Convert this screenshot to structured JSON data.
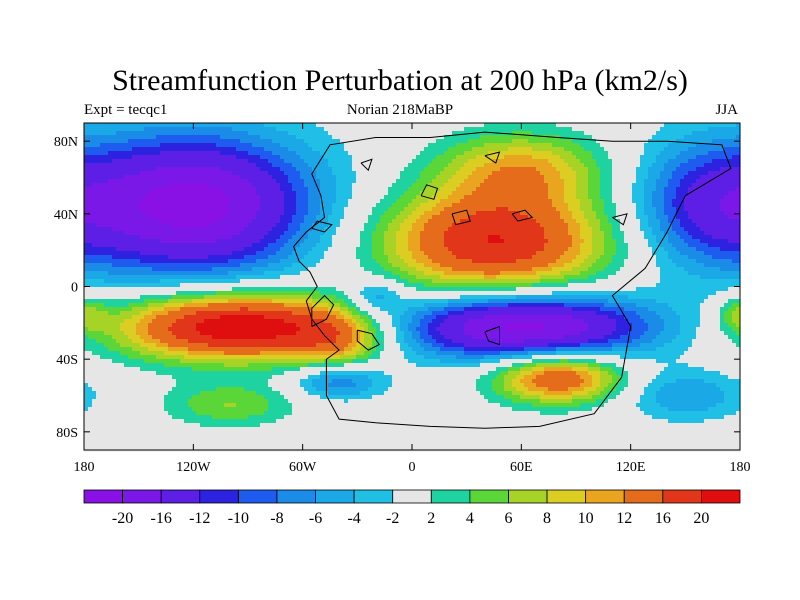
{
  "title": "Streamfunction Perturbation at 200 hPa (km2/s)",
  "subtitle_left": "Expt = tecqc1",
  "subtitle_center": "Norian 218MaBP",
  "subtitle_right": "JJA",
  "lat_ticks": [
    {
      "value": 80,
      "label": "80N"
    },
    {
      "value": 40,
      "label": "40N"
    },
    {
      "value": 0,
      "label": "0"
    },
    {
      "value": -40,
      "label": "40S"
    },
    {
      "value": -80,
      "label": "80S"
    }
  ],
  "lon_ticks": [
    {
      "value": -180,
      "label": "180"
    },
    {
      "value": -120,
      "label": "120W"
    },
    {
      "value": -60,
      "label": "60W"
    },
    {
      "value": 0,
      "label": "0"
    },
    {
      "value": 60,
      "label": "60E"
    },
    {
      "value": 120,
      "label": "120E"
    },
    {
      "value": 180,
      "label": "180"
    }
  ],
  "colorbar": {
    "colors": [
      "#8a11e6",
      "#7a18e8",
      "#5d1ee6",
      "#2c22e0",
      "#1d5cef",
      "#1a8ce8",
      "#1aa8e6",
      "#20c0e6",
      "#e6e6e6",
      "#1fd3a0",
      "#5ad639",
      "#a7d327",
      "#dccd22",
      "#e9a420",
      "#e46c1a",
      "#e2361b",
      "#e00f0f"
    ],
    "labels": [
      "-20",
      "-16",
      "-12",
      "-10",
      "-8",
      "-6",
      "-4",
      "-2",
      "2",
      "4",
      "6",
      "8",
      "10",
      "12",
      "16",
      "20"
    ]
  },
  "field_blobs": [
    {
      "lon": -120,
      "lat": 45,
      "rlon": 65,
      "rlat": 38,
      "amp": -22
    },
    {
      "lon": 160,
      "lat": 45,
      "rlon": 40,
      "rlat": 35,
      "amp": -10
    },
    {
      "lon": -95,
      "lat": -22,
      "rlon": 65,
      "rlat": 18,
      "amp": 24
    },
    {
      "lon": -40,
      "lat": -30,
      "rlon": 25,
      "rlat": 15,
      "amp": 8
    },
    {
      "lon": 60,
      "lat": -22,
      "rlon": 70,
      "rlat": 18,
      "amp": -22
    },
    {
      "lon": 45,
      "lat": 25,
      "rlon": 60,
      "rlat": 28,
      "amp": 20
    },
    {
      "lon": 60,
      "lat": 65,
      "rlon": 45,
      "rlat": 20,
      "amp": 10
    },
    {
      "lon": 80,
      "lat": -50,
      "rlon": 35,
      "rlat": 14,
      "amp": 16
    },
    {
      "lon": -100,
      "lat": -65,
      "rlon": 35,
      "rlat": 12,
      "amp": 6
    },
    {
      "lon": -40,
      "lat": -52,
      "rlon": 25,
      "rlat": 10,
      "amp": -8
    },
    {
      "lon": 150,
      "lat": -60,
      "rlon": 35,
      "rlat": 14,
      "amp": -6
    },
    {
      "lon": -20,
      "lat": -5,
      "rlon": 15,
      "rlat": 10,
      "amp": -6
    },
    {
      "lon": 180,
      "lat": -15,
      "rlon": 12,
      "rlat": 10,
      "amp": 6
    }
  ],
  "coastline": [
    [
      [
        -20,
        -75
      ],
      [
        -40,
        -73
      ],
      [
        -47,
        -60
      ],
      [
        -47,
        -40
      ],
      [
        -40,
        -35
      ],
      [
        -48,
        -27
      ],
      [
        -55,
        -18
      ],
      [
        -58,
        -8
      ],
      [
        -52,
        0
      ],
      [
        -56,
        8
      ],
      [
        -62,
        14
      ],
      [
        -65,
        22
      ],
      [
        -58,
        30
      ],
      [
        -48,
        38
      ],
      [
        -50,
        50
      ],
      [
        -55,
        62
      ],
      [
        -45,
        78
      ],
      [
        -20,
        82
      ],
      [
        10,
        82
      ],
      [
        40,
        85
      ],
      [
        80,
        82
      ],
      [
        110,
        80
      ],
      [
        140,
        80
      ],
      [
        170,
        78
      ],
      [
        175,
        65
      ],
      [
        150,
        50
      ],
      [
        140,
        30
      ],
      [
        128,
        10
      ],
      [
        110,
        -5
      ],
      [
        120,
        -22
      ],
      [
        115,
        -50
      ],
      [
        100,
        -70
      ],
      [
        70,
        -77
      ],
      [
        40,
        -78
      ],
      [
        10,
        -77
      ],
      [
        -20,
        -75
      ]
    ],
    [
      [
        -55,
        -22
      ],
      [
        -47,
        -18
      ],
      [
        -43,
        -10
      ],
      [
        -48,
        -5
      ],
      [
        -55,
        -12
      ],
      [
        -55,
        -22
      ]
    ],
    [
      [
        -30,
        -24
      ],
      [
        -22,
        -26
      ],
      [
        -18,
        -32
      ],
      [
        -24,
        -35
      ],
      [
        -30,
        -30
      ],
      [
        -30,
        -24
      ]
    ],
    [
      [
        40,
        -25
      ],
      [
        48,
        -22
      ],
      [
        48,
        -32
      ],
      [
        42,
        -30
      ],
      [
        40,
        -25
      ]
    ],
    [
      [
        -55,
        32
      ],
      [
        -48,
        30
      ],
      [
        -44,
        34
      ],
      [
        -52,
        36
      ],
      [
        -55,
        32
      ]
    ],
    [
      [
        5,
        50
      ],
      [
        12,
        48
      ],
      [
        14,
        54
      ],
      [
        8,
        56
      ],
      [
        5,
        50
      ]
    ],
    [
      [
        22,
        40
      ],
      [
        30,
        42
      ],
      [
        32,
        36
      ],
      [
        24,
        34
      ],
      [
        22,
        40
      ]
    ],
    [
      [
        55,
        40
      ],
      [
        62,
        42
      ],
      [
        66,
        38
      ],
      [
        58,
        36
      ],
      [
        55,
        40
      ]
    ],
    [
      [
        40,
        72
      ],
      [
        48,
        74
      ],
      [
        46,
        68
      ],
      [
        40,
        72
      ]
    ],
    [
      [
        110,
        38
      ],
      [
        118,
        40
      ],
      [
        116,
        34
      ],
      [
        110,
        38
      ]
    ],
    [
      [
        -28,
        68
      ],
      [
        -22,
        70
      ],
      [
        -24,
        64
      ],
      [
        -28,
        68
      ]
    ]
  ]
}
